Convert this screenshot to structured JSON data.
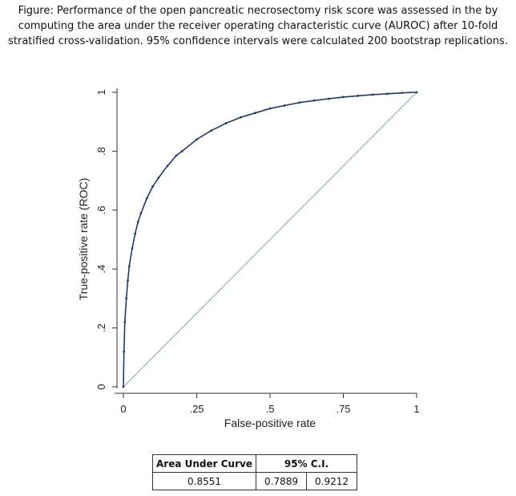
{
  "caption": {
    "line1": "Figure: Performance of the open pancreatic necrosectomy risk score was assessed in the by",
    "line2": "computing the area under the receiver operating characteristic curve (AUROC) after 10-fold",
    "line3": "stratified cross-validation. 95% confidence intervals were calculated 200 bootstrap replications."
  },
  "chart_data": {
    "type": "line",
    "title": "",
    "xlabel": "False-positive rate",
    "ylabel": "True-positive rate (ROC)",
    "xlim": [
      0,
      1
    ],
    "ylim": [
      0,
      1
    ],
    "x_ticks": [
      0,
      0.25,
      0.5,
      0.75,
      1
    ],
    "x_tick_labels": [
      "0",
      ".25",
      ".5",
      ".75",
      "1"
    ],
    "y_ticks": [
      0,
      0.2,
      0.4,
      0.6,
      0.8,
      1
    ],
    "y_tick_labels": [
      "0",
      ".2",
      ".4",
      ".6",
      ".8",
      "1"
    ],
    "grid": false,
    "colors": {
      "roc": "#1f3d63",
      "reference": "#8fb0b8",
      "axis": "#333333"
    },
    "series": [
      {
        "x": [
          0,
          0.002,
          0.005,
          0.01,
          0.015,
          0.02,
          0.03,
          0.04,
          0.05,
          0.06,
          0.08,
          0.1,
          0.12,
          0.15,
          0.18,
          0.2,
          0.25,
          0.3,
          0.35,
          0.4,
          0.45,
          0.5,
          0.55,
          0.6,
          0.65,
          0.7,
          0.75,
          0.8,
          0.85,
          0.9,
          0.95,
          1
        ],
        "y": [
          0,
          0.12,
          0.22,
          0.3,
          0.36,
          0.41,
          0.47,
          0.52,
          0.56,
          0.59,
          0.64,
          0.68,
          0.71,
          0.75,
          0.785,
          0.8,
          0.84,
          0.87,
          0.895,
          0.915,
          0.93,
          0.945,
          0.955,
          0.965,
          0.972,
          0.978,
          0.984,
          0.988,
          0.992,
          0.995,
          0.998,
          1
        ]
      },
      {
        "x": [
          0,
          1
        ],
        "y": [
          0,
          1
        ]
      }
    ]
  },
  "auc_table": {
    "header_auc": "Area Under Curve",
    "header_ci": "95% C.I.",
    "auc": "0.8551",
    "ci_low": "0.7889",
    "ci_high": "0.9212"
  }
}
